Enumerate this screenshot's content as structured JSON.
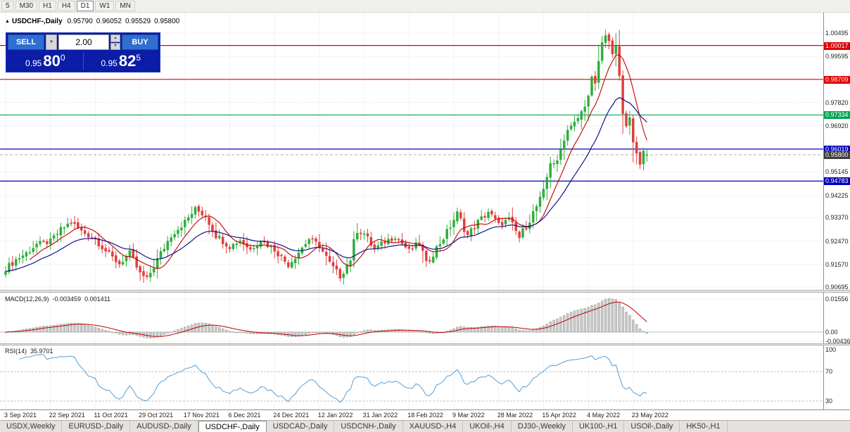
{
  "colors": {
    "candle_up": "#2fae3d",
    "candle_down": "#e23d3d",
    "ma_fast": "#c00000",
    "ma_slow": "#12128c",
    "macd_hist": "#c9c9c9",
    "macd_hist_border": "#9a9a9a",
    "macd_signal": "#c00000",
    "rsi_line": "#52a0d8",
    "grid": "#dcdcdc",
    "level_red": "#dd0000",
    "level_green": "#00a651",
    "level_blue": "#0000bb",
    "current_price_bg": "#3d3d3d"
  },
  "toolbar": {
    "timeframes": [
      {
        "label": "5",
        "active": false
      },
      {
        "label": "M30",
        "active": false
      },
      {
        "label": "H1",
        "active": false
      },
      {
        "label": "H4",
        "active": false
      },
      {
        "label": "D1",
        "active": true
      },
      {
        "label": "W1",
        "active": false
      },
      {
        "label": "MN",
        "active": false
      }
    ]
  },
  "chart": {
    "title_marker": "▲",
    "symbol_title": "USDCHF-,Daily",
    "ohlc": {
      "open": "0.95790",
      "high": "0.96052",
      "low": "0.95529",
      "close": "0.95800"
    }
  },
  "trade_panel": {
    "sell_label": "SELL",
    "buy_label": "BUY",
    "volume": "2.00",
    "dropdown_icon": "▼",
    "spin_up_icon": "▲",
    "spin_down_icon": "▼",
    "sell_price": {
      "prefix": "0.95",
      "big": "80",
      "sup": "0"
    },
    "buy_price": {
      "prefix": "0.95",
      "big": "82",
      "sup": "5"
    }
  },
  "price_axis": {
    "gridlines": [
      "1.00495",
      "0.99595",
      "0.97820",
      "0.96920",
      "0.95145",
      "0.94225",
      "0.93370",
      "0.92470",
      "0.91570",
      "0.90695"
    ]
  },
  "levels": [
    {
      "text": "1.00017",
      "color": "#dd0000"
    },
    {
      "text": "0.98709",
      "color": "#dd0000"
    },
    {
      "text": "0.97334",
      "color": "#00a651"
    },
    {
      "text": "0.96019",
      "color": "#0000bb"
    },
    {
      "text": "0.94783",
      "color": "#0000bb"
    }
  ],
  "current_price": {
    "text": "0.95800",
    "bg": "#3d3d3d"
  },
  "macd": {
    "name": "MACD(12,26,9)",
    "value_main": "-0.003459",
    "value_signal": "0.001411",
    "axis": [
      "0.01556",
      "0.00",
      "-0.00436"
    ]
  },
  "rsi": {
    "name": "RSI(14)",
    "value": "35.9701",
    "axis": [
      "100",
      "70",
      "30"
    ]
  },
  "dates": [
    {
      "t": "3 Sep 2021",
      "i": 0
    },
    {
      "t": "22 Sep 2021",
      "i": 13
    },
    {
      "t": "11 Oct 2021",
      "i": 26
    },
    {
      "t": "29 Oct 2021",
      "i": 39
    },
    {
      "t": "17 Nov 2021",
      "i": 52
    },
    {
      "t": "6 Dec 2021",
      "i": 65
    },
    {
      "t": "24 Dec 2021",
      "i": 78
    },
    {
      "t": "12 Jan 2022",
      "i": 91
    },
    {
      "t": "31 Jan 2022",
      "i": 104
    },
    {
      "t": "18 Feb 2022",
      "i": 117
    },
    {
      "t": "9 Mar 2022",
      "i": 130
    },
    {
      "t": "28 Mar 2022",
      "i": 143
    },
    {
      "t": "15 Apr 2022",
      "i": 156
    },
    {
      "t": "4 May 2022",
      "i": 169
    },
    {
      "t": "23 May 2022",
      "i": 182
    }
  ],
  "tabs": [
    {
      "label": "USDX,Weekly",
      "active": false
    },
    {
      "label": "EURUSD-,Daily",
      "active": false
    },
    {
      "label": "AUDUSD-,Daily",
      "active": false
    },
    {
      "label": "USDCHF-,Daily",
      "active": true
    },
    {
      "label": "USDCAD-,Daily",
      "active": false
    },
    {
      "label": "USDCNH-,Daily",
      "active": false
    },
    {
      "label": "XAUUSD-,H4",
      "active": false
    },
    {
      "label": "UKOil-,H4",
      "active": false
    },
    {
      "label": "DJ30-,Weekly",
      "active": false
    },
    {
      "label": "UK100-,H1",
      "active": false
    },
    {
      "label": "USOil-,Daily",
      "active": false
    },
    {
      "label": "HK50-,H1",
      "active": false
    }
  ],
  "chart_data": {
    "type": "candlestick",
    "title": "USDCHF-,Daily",
    "bars": 187,
    "x_axis": {
      "start": "3 Sep 2021",
      "end": "23 May 2022",
      "interval": "1 trading day"
    },
    "y_axis": {
      "min": 0.90695,
      "max": 1.00495
    },
    "last_bar": {
      "open": 0.9579,
      "high": 0.96052,
      "low": 0.95529,
      "close": 0.958
    },
    "close_path": [
      [
        0,
        0.914
      ],
      [
        3,
        0.9175
      ],
      [
        6,
        0.92
      ],
      [
        9,
        0.9235
      ],
      [
        13,
        0.9245
      ],
      [
        16,
        0.929
      ],
      [
        19,
        0.932
      ],
      [
        22,
        0.9285
      ],
      [
        26,
        0.9255
      ],
      [
        30,
        0.9195
      ],
      [
        33,
        0.916
      ],
      [
        36,
        0.92
      ],
      [
        39,
        0.912
      ],
      [
        41,
        0.91
      ],
      [
        44,
        0.9175
      ],
      [
        48,
        0.927
      ],
      [
        52,
        0.932
      ],
      [
        55,
        0.937
      ],
      [
        58,
        0.9345
      ],
      [
        61,
        0.927
      ],
      [
        65,
        0.9225
      ],
      [
        68,
        0.925
      ],
      [
        71,
        0.9215
      ],
      [
        74,
        0.925
      ],
      [
        78,
        0.9215
      ],
      [
        82,
        0.9155
      ],
      [
        85,
        0.9205
      ],
      [
        88,
        0.9255
      ],
      [
        91,
        0.923
      ],
      [
        94,
        0.916
      ],
      [
        97,
        0.911
      ],
      [
        100,
        0.918
      ],
      [
        102,
        0.929
      ],
      [
        104,
        0.9275
      ],
      [
        107,
        0.9215
      ],
      [
        110,
        0.9245
      ],
      [
        113,
        0.9265
      ],
      [
        117,
        0.921
      ],
      [
        120,
        0.924
      ],
      [
        122,
        0.916
      ],
      [
        125,
        0.922
      ],
      [
        128,
        0.928
      ],
      [
        131,
        0.9355
      ],
      [
        134,
        0.927
      ],
      [
        137,
        0.932
      ],
      [
        140,
        0.936
      ],
      [
        143,
        0.931
      ],
      [
        146,
        0.933
      ],
      [
        149,
        0.926
      ],
      [
        152,
        0.933
      ],
      [
        156,
        0.943
      ],
      [
        158,
        0.9555
      ],
      [
        160,
        0.9545
      ],
      [
        162,
        0.965
      ],
      [
        164,
        0.97
      ],
      [
        166,
        0.9715
      ],
      [
        168,
        0.9765
      ],
      [
        169,
        0.98
      ],
      [
        170,
        0.9895
      ],
      [
        171,
        0.985
      ],
      [
        172,
        0.9925
      ],
      [
        173,
        1.0
      ],
      [
        174,
        1.004
      ],
      [
        175,
        1.0015
      ],
      [
        176,
        0.9975
      ],
      [
        177,
        1.0005
      ],
      [
        178,
        0.9865
      ],
      [
        179,
        0.9745
      ],
      [
        180,
        0.968
      ],
      [
        181,
        0.9725
      ],
      [
        182,
        0.962
      ],
      [
        183,
        0.9575
      ],
      [
        184,
        0.9555
      ],
      [
        185,
        0.9605
      ],
      [
        186,
        0.958
      ]
    ],
    "levels": [
      1.00017,
      0.98709,
      0.97334,
      0.96019,
      0.94783
    ],
    "current_price": 0.958,
    "indicators": [
      {
        "name": "MACD",
        "params": [
          12,
          26,
          9
        ],
        "current_macd": -0.003459,
        "current_signal": 0.001411,
        "scale_max": 0.01556,
        "scale_min": -0.00436
      },
      {
        "name": "RSI",
        "params": [
          14
        ],
        "current": 35.9701,
        "levels": [
          70,
          30
        ]
      },
      {
        "name": "MA",
        "color": "red"
      },
      {
        "name": "MA",
        "color": "blue"
      }
    ]
  }
}
